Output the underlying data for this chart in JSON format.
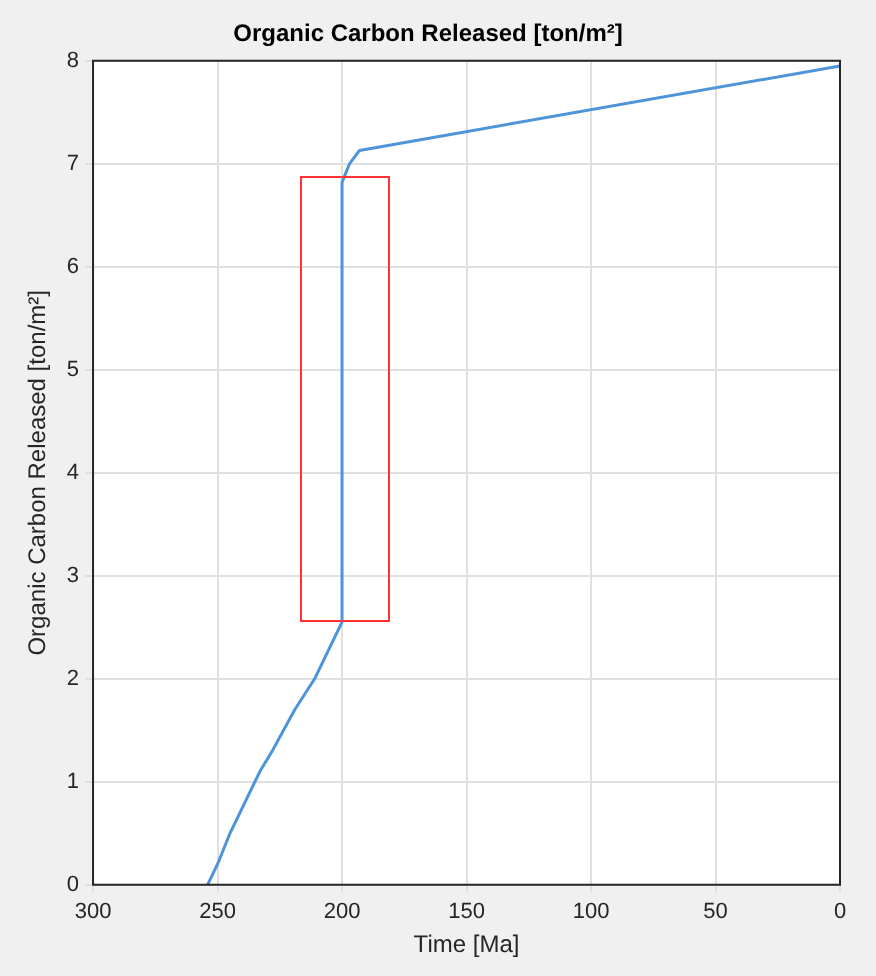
{
  "chart_data": {
    "type": "line",
    "title": "Organic Carbon Released [ton/m²]",
    "xlabel": "Time [Ma]",
    "ylabel": "Organic Carbon Released [ton/m²]",
    "series": [
      {
        "color": "#4d94db",
        "x": [
          254,
          250,
          245,
          239,
          233,
          228,
          219,
          211,
          205,
          200,
          200,
          197,
          193,
          0
        ],
        "values": [
          0,
          0.2,
          0.5,
          0.8,
          1.1,
          1.3,
          1.7,
          2.0,
          2.3,
          2.55,
          6.82,
          7.0,
          7.13,
          7.95
        ]
      }
    ],
    "xlim": [
      300,
      0
    ],
    "xticks": [
      300,
      250,
      200,
      150,
      100,
      50,
      0
    ],
    "ylim": [
      0,
      8
    ],
    "yticks": [
      0,
      1,
      2,
      3,
      4,
      5,
      6,
      7,
      8
    ],
    "grid": true,
    "legend": false,
    "marker": "none",
    "line_style": "solid"
  }
}
